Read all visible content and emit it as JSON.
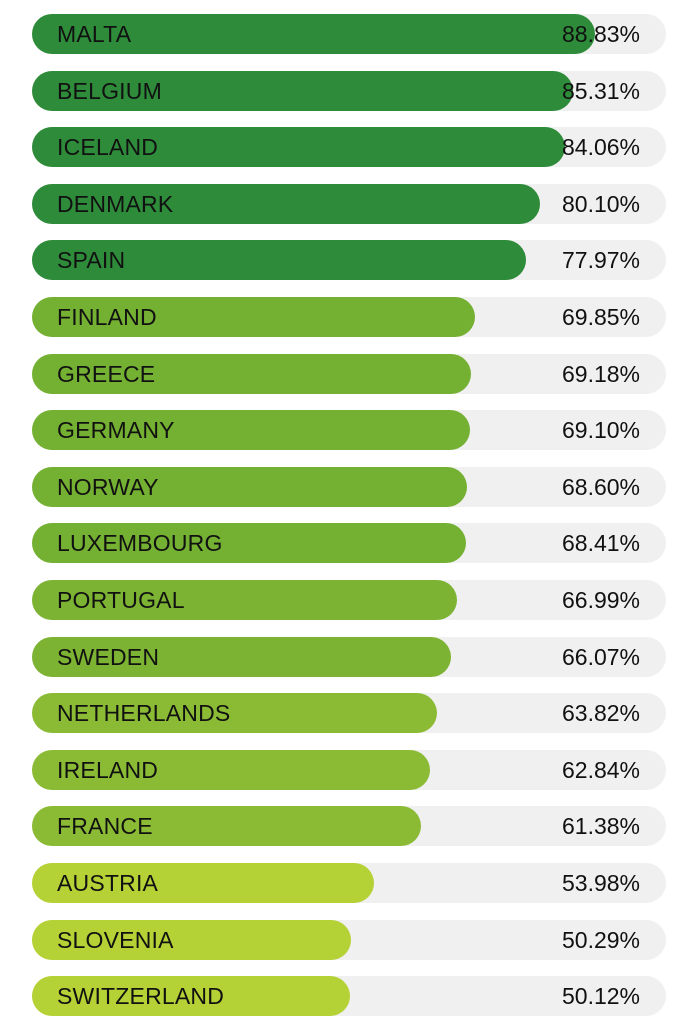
{
  "chart_data": {
    "type": "bar",
    "orientation": "horizontal",
    "categories": [
      "MALTA",
      "BELGIUM",
      "ICELAND",
      "DENMARK",
      "SPAIN",
      "FINLAND",
      "GREECE",
      "GERMANY",
      "NORWAY",
      "LUXEMBOURG",
      "PORTUGAL",
      "SWEDEN",
      "NETHERLANDS",
      "IRELAND",
      "FRANCE",
      "AUSTRIA",
      "SLOVENIA",
      "SWITZERLAND"
    ],
    "values": [
      88.83,
      85.31,
      84.06,
      80.1,
      77.97,
      69.85,
      69.18,
      69.1,
      68.6,
      68.41,
      66.99,
      66.07,
      63.82,
      62.84,
      61.38,
      53.98,
      50.29,
      50.12
    ],
    "value_labels": [
      "88.83%",
      "85.31%",
      "84.06%",
      "80.10%",
      "77.97%",
      "69.85%",
      "69.18%",
      "69.10%",
      "68.60%",
      "68.41%",
      "66.99%",
      "66.07%",
      "63.82%",
      "62.84%",
      "61.38%",
      "53.98%",
      "50.29%",
      "50.12%"
    ],
    "unit": "%",
    "xlim": [
      0,
      100
    ],
    "bar_colors": [
      "#2e8b3a",
      "#2e8b3a",
      "#2e8b3a",
      "#2e8b3a",
      "#2e8b3a",
      "#74b032",
      "#74b032",
      "#74b032",
      "#74b032",
      "#74b032",
      "#7db333",
      "#7db333",
      "#8bbb35",
      "#8bbb35",
      "#8bbb35",
      "#b4d135",
      "#b4d135",
      "#b4d135"
    ],
    "track_color": "#f0f0f0",
    "title": "",
    "xlabel": "",
    "ylabel": ""
  }
}
